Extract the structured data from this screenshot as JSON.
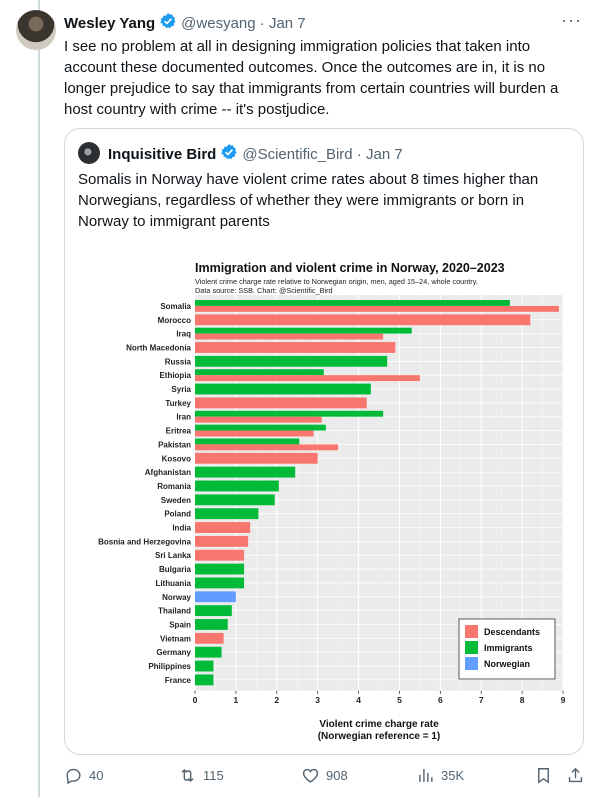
{
  "tweet": {
    "author_name": "Wesley Yang",
    "handle": "@wesyang",
    "date": "Jan 7",
    "more_icon": "more-icon",
    "text": "I see no problem at all in designing immigration policies that taken into account these documented outcomes. Once the outcomes are in, it is no longer prejudice to say that immigrants from certain countries will burden a host country with crime -- it's postjudice.",
    "metrics": {
      "replies": "40",
      "reposts": "115",
      "likes": "908",
      "views": "35K"
    }
  },
  "quote": {
    "author_name": "Inquisitive Bird",
    "handle": "@Scientific_Bird",
    "date": "Jan 7",
    "text": "Somalis in Norway have violent crime rates about 8 times higher than Norwegians, regardless of whether they were immigrants or born in Norway to immigrant parents"
  },
  "colors": {
    "descendants": "#f8766d",
    "immigrants": "#00ba38",
    "norwegian": "#619cff",
    "verified": "#1d9bf0"
  },
  "chart_data": {
    "type": "bar",
    "orientation": "horizontal",
    "title": "Immigration and violent crime in Norway, 2020–2023",
    "subtitle": "Violent crime charge rate relative to Norwegian origin, men, aged 15–24, whole country.",
    "source": "Data source: SSB.  Chart: @Scientific_Bird",
    "xlabel": "Violent crime charge rate",
    "xlabel2": "(Norwegian reference = 1)",
    "xlim": [
      0,
      9
    ],
    "xticks": [
      "0",
      "1",
      "2",
      "3",
      "4",
      "5",
      "6",
      "7",
      "8",
      "9"
    ],
    "grid": true,
    "legend_position": "bottom-right",
    "legend": [
      "Descendants",
      "Immigrants",
      "Norwegian"
    ],
    "categories": [
      "Somalia",
      "Morocco",
      "Iraq",
      "North Macedonia",
      "Russia",
      "Ethiopia",
      "Syria",
      "Turkey",
      "Iran",
      "Eritrea",
      "Pakistan",
      "Kosovo",
      "Afghanistan",
      "Romania",
      "Sweden",
      "Poland",
      "India",
      "Bosnia and Herzegovina",
      "Sri Lanka",
      "Bulgaria",
      "Lithuania",
      "Norway",
      "Thailand",
      "Spain",
      "Vietnam",
      "Germany",
      "Philippines",
      "France"
    ],
    "series": [
      {
        "name": "Descendants",
        "values": [
          8.9,
          8.2,
          4.6,
          4.9,
          null,
          5.5,
          null,
          4.2,
          3.1,
          2.9,
          3.5,
          3.0,
          null,
          null,
          null,
          null,
          1.35,
          1.3,
          1.2,
          null,
          null,
          null,
          null,
          null,
          0.7,
          null,
          null,
          null
        ]
      },
      {
        "name": "Immigrants",
        "values": [
          7.7,
          null,
          5.3,
          null,
          4.7,
          3.15,
          4.3,
          null,
          4.6,
          3.2,
          2.55,
          null,
          2.45,
          2.05,
          1.95,
          1.55,
          null,
          null,
          null,
          1.2,
          1.2,
          null,
          0.9,
          0.8,
          null,
          0.65,
          0.45,
          0.45
        ]
      },
      {
        "name": "Norwegian",
        "values": [
          null,
          null,
          null,
          null,
          null,
          null,
          null,
          null,
          null,
          null,
          null,
          null,
          null,
          null,
          null,
          null,
          null,
          null,
          null,
          null,
          null,
          1.0,
          null,
          null,
          null,
          null,
          null,
          null
        ]
      }
    ]
  }
}
